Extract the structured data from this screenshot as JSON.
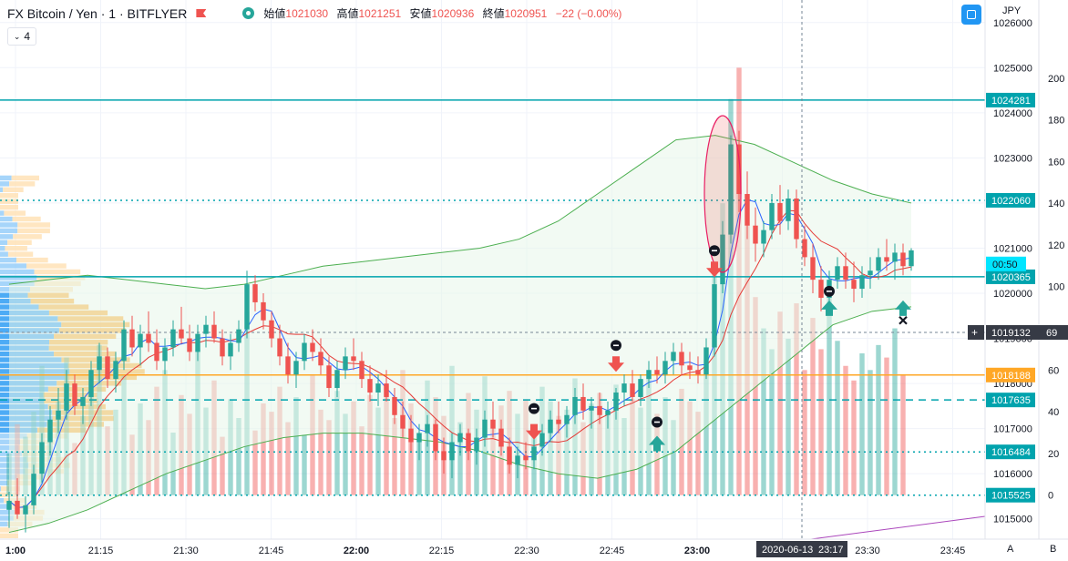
{
  "header": {
    "symbol": "FX Bitcoin / Yen · 1 · BITFLYER",
    "open_label": "始値",
    "open": "1021030",
    "high_label": "高値",
    "high": "1021251",
    "low_label": "安値",
    "low": "1020936",
    "close_label": "終値",
    "close": "1020951",
    "change": "−22 (−0.00%)"
  },
  "indicator_toggle": "4",
  "currency": "JPY",
  "corner_labels": {
    "a": "A",
    "b": "B"
  },
  "colors": {
    "up": "#26a69a",
    "down": "#ef5350",
    "accent": "#00a3ad",
    "orange": "#ffa726",
    "bands": "#4caf50",
    "ema_blue": "#2962ff",
    "ma_red": "#e53935"
  },
  "chart_data": {
    "type": "candlestick",
    "x_ticks": [
      "1:00",
      "21:15",
      "21:30",
      "21:45",
      "22:00",
      "22:15",
      "22:30",
      "22:45",
      "23:00",
      "23:15",
      "23:30",
      "23:45"
    ],
    "y_ticks": [
      1015000,
      1016000,
      1017000,
      1018000,
      1019000,
      1020000,
      1021000,
      1022000,
      1023000,
      1024000,
      1025000,
      1026000
    ],
    "ylim": [
      1014550,
      1026500
    ],
    "volume_ticks": [
      0,
      20,
      40,
      60,
      80,
      100,
      120,
      140,
      160,
      180,
      200
    ],
    "horizontal_lines": [
      {
        "price": 1024281,
        "label": "1024281",
        "style": "solid"
      },
      {
        "price": 1022060,
        "label": "1022060",
        "style": "dotted"
      },
      {
        "price": 1020365,
        "label": "1020365",
        "style": "solid"
      },
      {
        "price": 1018188,
        "label": "1018188",
        "style": "solid-orange"
      },
      {
        "price": 1017635,
        "label": "1017635",
        "style": "dashed"
      },
      {
        "price": 1016484,
        "label": "1016484",
        "style": "dotted"
      },
      {
        "price": 1015525,
        "label": "1015525",
        "style": "dotted"
      },
      {
        "price": 1019132,
        "label": "1019132",
        "style": "crosshair"
      }
    ],
    "price_tags": [
      {
        "label": "00:50",
        "price": 1020650
      },
      {
        "label": "1019132",
        "price": 1019132
      },
      {
        "label": "69",
        "price": 1019132
      }
    ],
    "crosshair": {
      "time_label": "2020-06-13",
      "clock_label": "23:17",
      "price": 1019132
    },
    "candles": [
      [
        1015200,
        1015600,
        1014800,
        1015400
      ],
      [
        1015400,
        1015900,
        1015000,
        1015100
      ],
      [
        1015100,
        1015500,
        1014700,
        1015300
      ],
      [
        1015300,
        1016200,
        1015100,
        1016000
      ],
      [
        1016000,
        1016900,
        1015800,
        1016700
      ],
      [
        1016700,
        1017500,
        1016400,
        1017200
      ],
      [
        1017200,
        1017900,
        1016900,
        1017400
      ],
      [
        1017400,
        1018300,
        1017200,
        1018000
      ],
      [
        1018000,
        1018200,
        1017300,
        1017500
      ],
      [
        1017500,
        1017900,
        1017100,
        1017700
      ],
      [
        1017700,
        1018500,
        1017500,
        1018300
      ],
      [
        1018300,
        1018900,
        1018000,
        1018600
      ],
      [
        1018600,
        1018800,
        1017900,
        1018100
      ],
      [
        1018100,
        1018700,
        1017800,
        1018500
      ],
      [
        1018500,
        1019400,
        1018300,
        1019200
      ],
      [
        1019200,
        1019500,
        1018600,
        1018800
      ],
      [
        1018800,
        1019300,
        1018400,
        1019100
      ],
      [
        1019100,
        1019600,
        1018700,
        1018900
      ],
      [
        1018900,
        1019200,
        1018300,
        1018500
      ],
      [
        1018500,
        1019000,
        1018200,
        1018800
      ],
      [
        1018800,
        1019400,
        1018600,
        1019200
      ],
      [
        1019200,
        1019700,
        1018900,
        1019000
      ],
      [
        1019000,
        1019300,
        1018500,
        1018700
      ],
      [
        1018700,
        1019300,
        1018500,
        1019100
      ],
      [
        1019100,
        1019500,
        1018800,
        1019300
      ],
      [
        1019300,
        1019600,
        1018900,
        1019000
      ],
      [
        1019000,
        1019200,
        1018400,
        1018600
      ],
      [
        1018600,
        1019100,
        1018300,
        1018900
      ],
      [
        1018900,
        1019400,
        1018700,
        1019200
      ],
      [
        1019200,
        1020500,
        1019000,
        1020200
      ],
      [
        1020200,
        1020400,
        1019600,
        1019800
      ],
      [
        1019800,
        1020000,
        1019200,
        1019400
      ],
      [
        1019400,
        1019600,
        1018800,
        1019000
      ],
      [
        1019000,
        1019300,
        1018400,
        1018600
      ],
      [
        1018600,
        1018900,
        1018000,
        1018200
      ],
      [
        1018200,
        1018700,
        1017900,
        1018500
      ],
      [
        1018500,
        1019100,
        1018300,
        1018900
      ],
      [
        1018900,
        1019200,
        1018500,
        1018700
      ],
      [
        1018700,
        1019000,
        1018200,
        1018400
      ],
      [
        1018400,
        1018600,
        1017700,
        1017900
      ],
      [
        1017900,
        1018500,
        1017700,
        1018300
      ],
      [
        1018300,
        1018800,
        1018100,
        1018600
      ],
      [
        1018600,
        1019000,
        1018300,
        1018500
      ],
      [
        1018500,
        1018700,
        1017900,
        1018100
      ],
      [
        1018100,
        1018400,
        1017600,
        1017800
      ],
      [
        1017800,
        1018200,
        1017500,
        1018000
      ],
      [
        1018000,
        1018300,
        1017600,
        1017700
      ],
      [
        1017700,
        1017900,
        1017100,
        1017300
      ],
      [
        1017300,
        1017600,
        1016800,
        1017000
      ],
      [
        1017000,
        1017300,
        1016500,
        1016700
      ],
      [
        1016700,
        1017100,
        1016300,
        1016900
      ],
      [
        1016900,
        1017300,
        1016600,
        1017100
      ],
      [
        1017100,
        1017200,
        1016300,
        1016500
      ],
      [
        1016500,
        1016800,
        1016000,
        1016300
      ],
      [
        1016300,
        1016900,
        1015900,
        1016700
      ],
      [
        1016700,
        1017100,
        1016400,
        1016900
      ],
      [
        1016900,
        1017000,
        1016300,
        1016500
      ],
      [
        1016500,
        1017000,
        1016200,
        1016800
      ],
      [
        1016800,
        1017400,
        1016600,
        1017200
      ],
      [
        1017200,
        1017600,
        1016800,
        1017000
      ],
      [
        1017000,
        1017200,
        1016400,
        1016600
      ],
      [
        1016600,
        1016800,
        1016000,
        1016200
      ],
      [
        1016200,
        1016600,
        1015900,
        1016400
      ],
      [
        1016400,
        1016700,
        1016100,
        1016300
      ],
      [
        1016300,
        1016800,
        1016100,
        1016600
      ],
      [
        1016600,
        1017100,
        1016400,
        1016900
      ],
      [
        1016900,
        1017400,
        1016700,
        1017200
      ],
      [
        1017200,
        1017600,
        1016900,
        1017100
      ],
      [
        1017100,
        1017500,
        1016800,
        1017300
      ],
      [
        1017300,
        1017900,
        1017100,
        1017700
      ],
      [
        1017700,
        1018000,
        1017200,
        1017400
      ],
      [
        1017400,
        1017700,
        1017000,
        1017500
      ],
      [
        1017500,
        1017800,
        1017100,
        1017300
      ],
      [
        1017300,
        1017600,
        1017000,
        1017400
      ],
      [
        1017400,
        1017900,
        1017200,
        1017800
      ],
      [
        1017800,
        1018200,
        1017500,
        1018000
      ],
      [
        1018000,
        1018300,
        1017600,
        1017700
      ],
      [
        1017700,
        1018200,
        1017500,
        1018100
      ],
      [
        1018100,
        1018500,
        1017900,
        1018300
      ],
      [
        1018300,
        1018600,
        1018000,
        1018200
      ],
      [
        1018200,
        1018700,
        1018000,
        1018500
      ],
      [
        1018500,
        1018900,
        1018200,
        1018700
      ],
      [
        1018700,
        1018900,
        1018200,
        1018400
      ],
      [
        1018400,
        1018700,
        1018100,
        1018300
      ],
      [
        1018300,
        1018600,
        1018000,
        1018200
      ],
      [
        1018200,
        1019000,
        1018100,
        1018800
      ],
      [
        1018800,
        1020400,
        1018600,
        1020200
      ],
      [
        1020200,
        1021600,
        1020000,
        1021300
      ],
      [
        1021300,
        1023500,
        1021100,
        1023300
      ],
      [
        1023300,
        1023600,
        1021800,
        1022200
      ],
      [
        1022200,
        1022700,
        1021200,
        1021500
      ],
      [
        1021500,
        1021900,
        1020700,
        1021100
      ],
      [
        1021100,
        1021600,
        1020800,
        1021400
      ],
      [
        1021400,
        1022200,
        1021200,
        1022000
      ],
      [
        1022000,
        1022400,
        1021300,
        1021600
      ],
      [
        1021600,
        1022300,
        1021400,
        1022100
      ],
      [
        1022100,
        1022300,
        1021000,
        1021200
      ],
      [
        1021200,
        1021500,
        1020600,
        1020800
      ],
      [
        1020800,
        1021100,
        1020000,
        1020300
      ],
      [
        1020300,
        1020600,
        1019600,
        1019900
      ],
      [
        1019900,
        1020500,
        1019700,
        1020300
      ],
      [
        1020300,
        1020800,
        1020100,
        1020600
      ],
      [
        1020600,
        1020900,
        1020100,
        1020300
      ],
      [
        1020300,
        1020700,
        1019800,
        1020100
      ],
      [
        1020100,
        1020600,
        1019900,
        1020400
      ],
      [
        1020400,
        1020800,
        1020100,
        1020500
      ],
      [
        1020500,
        1021000,
        1020300,
        1020800
      ],
      [
        1020800,
        1021200,
        1020500,
        1020700
      ],
      [
        1020700,
        1021100,
        1020300,
        1020900
      ],
      [
        1020900,
        1021100,
        1020400,
        1020600
      ],
      [
        1020600,
        1021000,
        1020500,
        1020951
      ]
    ],
    "volumes": [
      20,
      34,
      28,
      40,
      62,
      30,
      45,
      66,
      25,
      38,
      50,
      72,
      33,
      41,
      58,
      29,
      44,
      36,
      52,
      60,
      30,
      48,
      39,
      70,
      42,
      55,
      28,
      46,
      37,
      88,
      31,
      44,
      40,
      52,
      35,
      47,
      29,
      58,
      41,
      36,
      50,
      39,
      45,
      33,
      48,
      42,
      53,
      37,
      60,
      44,
      30,
      55,
      47,
      38,
      62,
      35,
      49,
      41,
      57,
      36,
      43,
      50,
      39,
      46,
      34,
      52,
      45,
      38,
      41,
      56,
      35,
      44,
      49,
      40,
      53,
      37,
      46,
      42,
      58,
      39,
      47,
      36,
      51,
      45,
      40,
      62,
      110,
      140,
      190,
      205,
      130,
      95,
      80,
      70,
      88,
      75,
      92,
      60,
      85,
      70,
      98,
      74,
      62,
      55,
      68,
      60,
      72,
      66,
      80,
      58
    ],
    "bollinger": {
      "upper": [
        1020200,
        1020300,
        1020400,
        1020300,
        1020200,
        1020100,
        1020200,
        1020400,
        1020600,
        1020700,
        1020800,
        1020900,
        1021000,
        1021200,
        1021600,
        1022200,
        1022800,
        1023400,
        1023500,
        1023300,
        1022900,
        1022500,
        1022200,
        1022000
      ],
      "lower": [
        1014700,
        1014900,
        1015200,
        1015600,
        1016000,
        1016300,
        1016600,
        1016800,
        1016900,
        1016900,
        1016800,
        1016700,
        1016500,
        1016200,
        1016000,
        1015900,
        1016100,
        1016500,
        1017200,
        1017900,
        1018600,
        1019300,
        1019600,
        1019700
      ]
    },
    "markers": {
      "down_arrows": [
        {
          "candle": 64,
          "price": 1016900
        },
        {
          "candle": 74,
          "price": 1018400
        },
        {
          "candle": 86,
          "price": 1020500
        }
      ],
      "up_arrows": [
        {
          "candle": 79,
          "price": 1016700
        },
        {
          "candle": 100,
          "price": 1019700
        },
        {
          "candle": 109,
          "price": 1019700
        }
      ],
      "circles": [
        {
          "candle": 64,
          "price": 1017000
        },
        {
          "candle": 74,
          "price": 1018400
        },
        {
          "candle": 79,
          "price": 1016700
        },
        {
          "candle": 86,
          "price": 1020500
        },
        {
          "candle": 100,
          "price": 1019600
        }
      ],
      "cross": [
        {
          "candle": 109,
          "price": 1019400
        }
      ]
    }
  }
}
